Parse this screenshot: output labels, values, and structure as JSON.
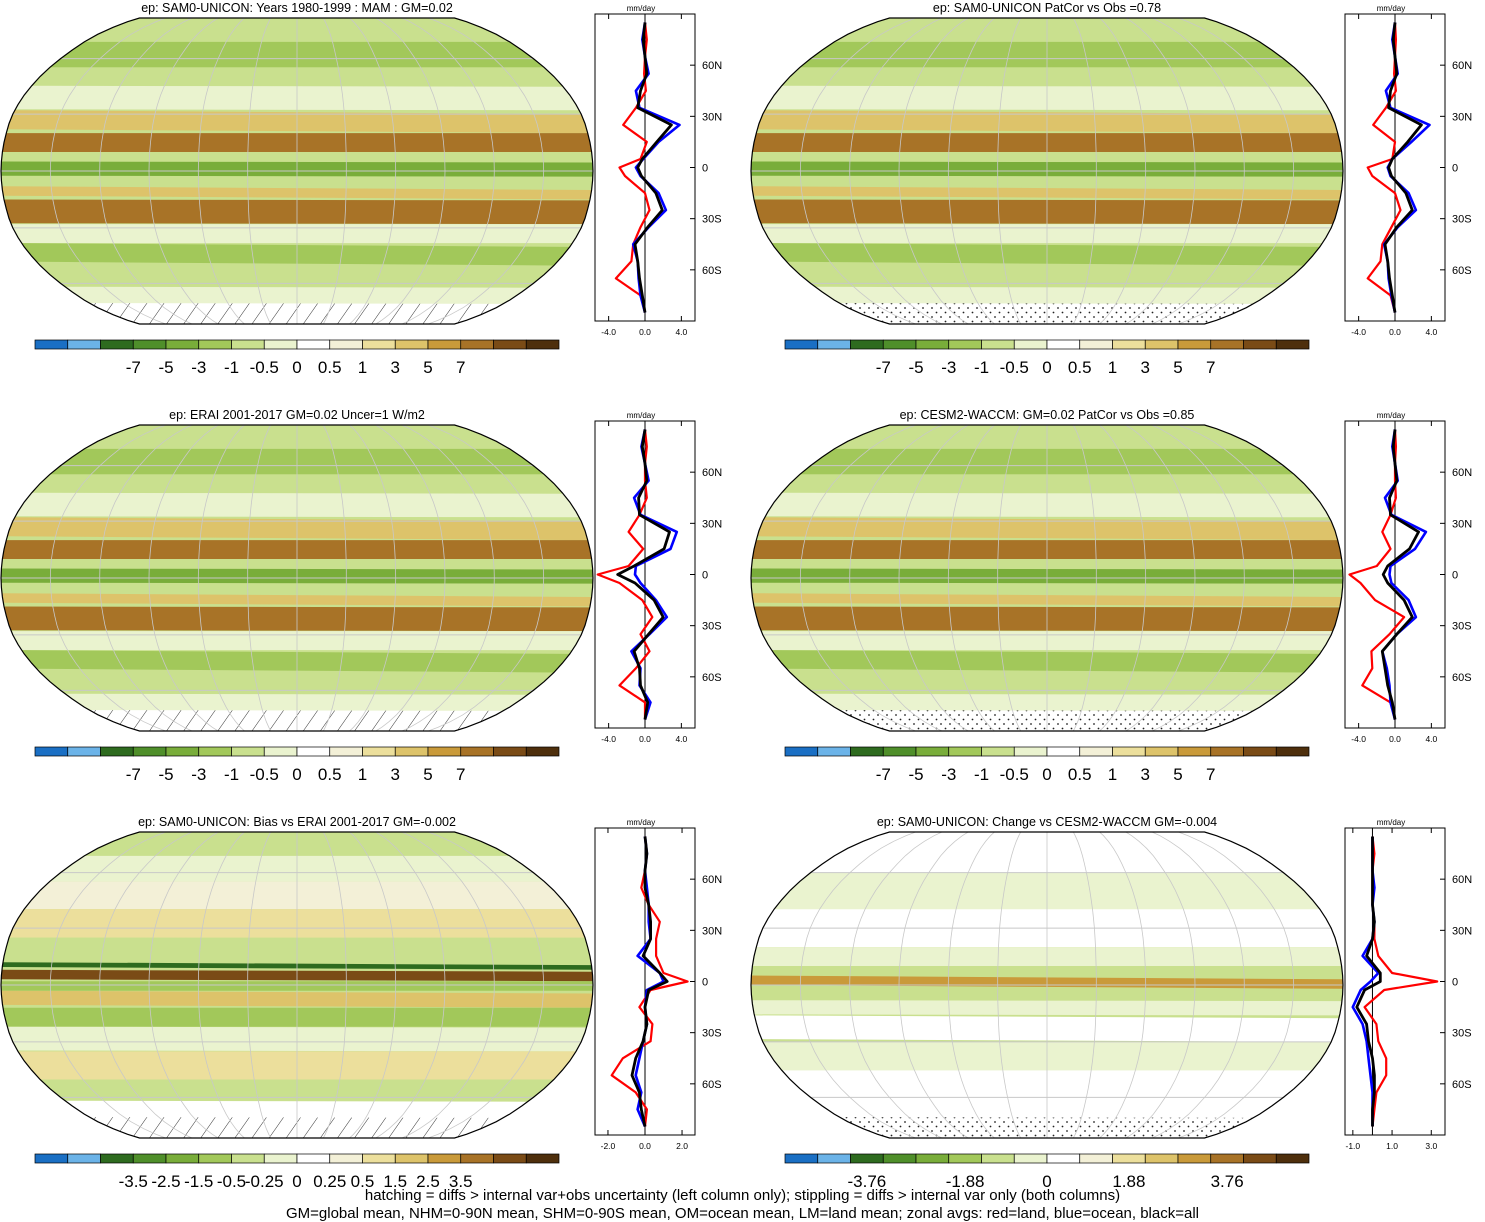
{
  "palette": {
    "colors12": [
      "#1a6fc4",
      "#6bb3e8",
      "#2e6b1f",
      "#4f8f2a",
      "#79ad3a",
      "#a2c85a",
      "#c9e08e",
      "#eaf3cf",
      "#ffffff",
      "#f3f0d7",
      "#ecdf9c",
      "#ddc36a",
      "#c99a3a",
      "#a87327",
      "#7a4b16",
      "#4e2f0c"
    ],
    "latitude_line_color": "#c8c8c8",
    "land_color": "#ff0000",
    "ocean_color": "#0000ff",
    "all_color": "#000000"
  },
  "panels": [
    {
      "id": "p1",
      "title": "ep: SAM0-UNICON: Years 1980-1999 : MAM : GM=0.02",
      "colorbar_labels": [
        "-7",
        "-5",
        "-3",
        "-1",
        "-0.5",
        "0",
        "0.5",
        "1",
        "3",
        "5",
        "7"
      ],
      "zonal_unit": "mm/day",
      "zonal_xticks": [
        "-4.0",
        "0.0",
        "4.0"
      ],
      "zonal_lat_ticks": [
        "60N",
        "30N",
        "0",
        "30S",
        "60S"
      ],
      "hatch_south": "hatching"
    },
    {
      "id": "p2",
      "title": "ep: SAM0-UNICON PatCor vs Obs =0.78",
      "colorbar_labels": [
        "-7",
        "-5",
        "-3",
        "-1",
        "-0.5",
        "0",
        "0.5",
        "1",
        "3",
        "5",
        "7"
      ],
      "zonal_unit": "mm/day",
      "zonal_xticks": [
        "-4.0",
        "0.0",
        "4.0"
      ],
      "zonal_lat_ticks": [
        "60N",
        "30N",
        "0",
        "30S",
        "60S"
      ],
      "hatch_south": "stippling"
    },
    {
      "id": "p3",
      "title": "ep: ERAI 2001-2017 GM=0.02 Uncer=1 W/m2",
      "colorbar_labels": [
        "-7",
        "-5",
        "-3",
        "-1",
        "-0.5",
        "0",
        "0.5",
        "1",
        "3",
        "5",
        "7"
      ],
      "zonal_unit": "mm/day",
      "zonal_xticks": [
        "-4.0",
        "0.0",
        "4.0"
      ],
      "zonal_lat_ticks": [
        "60N",
        "30N",
        "0",
        "30S",
        "60S"
      ],
      "hatch_south": "hatching"
    },
    {
      "id": "p4",
      "title": "ep: CESM2-WACCM: GM=0.02 PatCor vs Obs =0.85",
      "colorbar_labels": [
        "-7",
        "-5",
        "-3",
        "-1",
        "-0.5",
        "0",
        "0.5",
        "1",
        "3",
        "5",
        "7"
      ],
      "zonal_unit": "mm/day",
      "zonal_xticks": [
        "-4.0",
        "0.0",
        "4.0"
      ],
      "zonal_lat_ticks": [
        "60N",
        "30N",
        "0",
        "30S",
        "60S"
      ],
      "hatch_south": "stippling"
    },
    {
      "id": "p5",
      "title": "ep: SAM0-UNICON: Bias vs ERAI 2001-2017 GM=-0.002",
      "colorbar_labels": [
        "-3.5",
        "-2.5",
        "-1.5",
        "-0.5",
        "-0.25",
        "0",
        "0.25",
        "0.5",
        "1.5",
        "2.5",
        "3.5"
      ],
      "zonal_unit": "mm/day",
      "zonal_xticks": [
        "-2.0",
        "0.0",
        "2.0"
      ],
      "zonal_lat_ticks": [
        "60N",
        "30N",
        "0",
        "30S",
        "60S"
      ],
      "hatch_south": "hatching"
    },
    {
      "id": "p6",
      "title": "ep: SAM0-UNICON: Change vs CESM2-WACCM GM=-0.004",
      "colorbar_labels": [
        "-3.76",
        "-1.88",
        "0",
        "1.88",
        "3.76"
      ],
      "zonal_unit": "mm/day",
      "zonal_xticks": [
        "-1.0",
        "1.0",
        "3.0"
      ],
      "zonal_lat_ticks": [
        "60N",
        "30N",
        "0",
        "30S",
        "60S"
      ],
      "hatch_south": "stippling"
    }
  ],
  "chart_data": [
    {
      "type": "line",
      "title": "ep: SAM0-UNICON: Years 1980-1999 : MAM : GM=0.02",
      "xlabel": "mm/day",
      "xlim": [
        -5.5,
        5.5
      ],
      "ylim": [
        -90,
        90
      ],
      "lat": [
        -85,
        -75,
        -65,
        -55,
        -45,
        -35,
        -25,
        -15,
        -5,
        0,
        5,
        15,
        25,
        35,
        45,
        55,
        65,
        75,
        85
      ],
      "series": [
        {
          "name": "red=land",
          "values": [
            0,
            -0.5,
            -3.2,
            -1.5,
            -1.3,
            -0.5,
            0.5,
            0,
            -2.2,
            -2.8,
            -0.5,
            0.2,
            -2.4,
            -1.0,
            0.1,
            -0.1,
            0,
            0.2,
            0
          ]
        },
        {
          "name": "blue=ocean",
          "values": [
            0,
            -0.5,
            -0.7,
            -0.8,
            -1.3,
            0.4,
            2.3,
            1.5,
            -0.5,
            -1.0,
            -0.2,
            1.5,
            3.8,
            -0.6,
            -1.0,
            0.4,
            0,
            -0.3,
            0
          ]
        },
        {
          "name": "black=all",
          "values": [
            0,
            -0.3,
            -0.6,
            -0.8,
            -1.1,
            0.3,
            1.9,
            1.2,
            -0.4,
            -0.8,
            -0.3,
            1.3,
            2.9,
            -0.8,
            -0.5,
            0.2,
            0,
            -0.2,
            0
          ]
        }
      ]
    },
    {
      "type": "line",
      "title": "ep: SAM0-UNICON PatCor vs Obs =0.78",
      "xlabel": "mm/day",
      "xlim": [
        -5.5,
        5.5
      ],
      "ylim": [
        -90,
        90
      ],
      "lat": [
        -85,
        -75,
        -65,
        -55,
        -45,
        -35,
        -25,
        -15,
        -5,
        0,
        5,
        15,
        25,
        35,
        45,
        55,
        65,
        75,
        85
      ],
      "series": [
        {
          "name": "red=land",
          "values": [
            0,
            -0.5,
            -3.0,
            -1.6,
            -1.4,
            -0.4,
            0.6,
            0,
            -2.5,
            -3.0,
            -0.3,
            0,
            -2.4,
            -1.0,
            0.1,
            -0.1,
            0,
            0.1,
            0
          ]
        },
        {
          "name": "blue=ocean",
          "values": [
            0,
            -0.4,
            -0.7,
            -0.8,
            -1.2,
            0.3,
            2.3,
            1.5,
            -0.5,
            -0.8,
            -0.3,
            1.8,
            3.8,
            -0.5,
            -1.0,
            0.3,
            0,
            -0.3,
            0
          ]
        },
        {
          "name": "black=all",
          "values": [
            0,
            -0.3,
            -0.6,
            -0.8,
            -1.1,
            0.2,
            1.9,
            1.2,
            -0.4,
            -0.7,
            -0.3,
            1.4,
            2.9,
            -0.7,
            -0.5,
            0.2,
            0,
            -0.2,
            0
          ]
        }
      ]
    },
    {
      "type": "line",
      "title": "ep: ERAI 2001-2017 GM=0.02 Uncer=1 W/m2",
      "xlabel": "mm/day",
      "xlim": [
        -5.5,
        5.5
      ],
      "ylim": [
        -90,
        90
      ],
      "lat": [
        -85,
        -75,
        -65,
        -55,
        -45,
        -35,
        -25,
        -15,
        -5,
        0,
        5,
        15,
        25,
        35,
        45,
        55,
        65,
        75,
        85
      ],
      "series": [
        {
          "name": "red=land",
          "values": [
            0,
            0,
            -2.8,
            -1.0,
            0.5,
            -0.5,
            0.8,
            -0.3,
            -2.8,
            -5.2,
            -1.8,
            -0.2,
            -1.8,
            -0.6,
            0.2,
            0,
            0,
            0.2,
            0
          ]
        },
        {
          "name": "blue=ocean",
          "values": [
            0,
            0.6,
            -0.6,
            -0.5,
            -1.5,
            0.5,
            2.4,
            1.2,
            -0.5,
            -1.1,
            -1.0,
            2.8,
            3.5,
            -0.5,
            -1.2,
            0.4,
            0,
            -0.4,
            0
          ]
        },
        {
          "name": "black=all",
          "values": [
            0,
            0.3,
            -0.5,
            -0.6,
            -1.2,
            0.4,
            2.0,
            1.0,
            -1.1,
            -3.0,
            -1.2,
            2.1,
            2.7,
            -0.6,
            -0.7,
            0.2,
            0,
            -0.3,
            0
          ]
        }
      ]
    },
    {
      "type": "line",
      "title": "ep: CESM2-WACCM: GM=0.02 PatCor vs Obs =0.85",
      "xlabel": "mm/day",
      "xlim": [
        -5.5,
        5.5
      ],
      "ylim": [
        -90,
        90
      ],
      "lat": [
        -85,
        -75,
        -65,
        -55,
        -45,
        -35,
        -25,
        -15,
        -5,
        0,
        5,
        15,
        25,
        35,
        45,
        55,
        65,
        75,
        85
      ],
      "series": [
        {
          "name": "red=land",
          "values": [
            0,
            -0.5,
            -3.6,
            -2.5,
            -2.6,
            -0.6,
            1.0,
            -2.2,
            -3.8,
            -5.0,
            -2.0,
            -0.5,
            -1.4,
            -0.5,
            0.1,
            0,
            0,
            0.1,
            0
          ]
        },
        {
          "name": "blue=ocean",
          "values": [
            0,
            -0.5,
            -0.6,
            -0.9,
            -1.4,
            0.2,
            2.3,
            1.5,
            -0.4,
            -0.6,
            -0.5,
            2.2,
            3.4,
            -0.4,
            -1.1,
            0.3,
            0,
            -0.3,
            0
          ]
        },
        {
          "name": "black=all",
          "values": [
            0,
            -0.3,
            -0.8,
            -1.1,
            -1.4,
            0.2,
            1.9,
            1.0,
            -0.8,
            -1.3,
            -0.8,
            1.6,
            2.6,
            -0.5,
            -0.6,
            0.2,
            0,
            -0.2,
            0
          ]
        }
      ]
    },
    {
      "type": "line",
      "title": "ep: SAM0-UNICON: Bias vs ERAI 2001-2017 GM=-0.002",
      "xlabel": "mm/day",
      "xlim": [
        -2.7,
        2.7
      ],
      "ylim": [
        -90,
        90
      ],
      "lat": [
        -85,
        -75,
        -65,
        -55,
        -45,
        -35,
        -25,
        -15,
        -5,
        0,
        5,
        15,
        25,
        35,
        45,
        55,
        65,
        75,
        85
      ],
      "series": [
        {
          "name": "red=land",
          "values": [
            0,
            0.1,
            -0.5,
            -1.8,
            -1.2,
            0.3,
            0.4,
            -0.3,
            0.3,
            2.3,
            1.0,
            0.6,
            0.6,
            0.8,
            0.2,
            -0.2,
            0,
            0.1,
            0
          ]
        },
        {
          "name": "blue=ocean",
          "values": [
            0,
            -0.4,
            -0.2,
            -0.5,
            -0.3,
            -0.1,
            0.1,
            0,
            0.1,
            1.0,
            0.8,
            -0.4,
            0.3,
            0.2,
            0.2,
            0.1,
            0,
            0.1,
            0
          ]
        },
        {
          "name": "black=all",
          "values": [
            0,
            -0.2,
            -0.3,
            -0.7,
            -0.5,
            -0.1,
            0.1,
            0,
            0.2,
            1.2,
            0.8,
            -0.1,
            0.3,
            0.3,
            0.2,
            0,
            0,
            0.1,
            0
          ]
        }
      ]
    },
    {
      "type": "line",
      "title": "ep: SAM0-UNICON: Change vs CESM2-WACCM GM=-0.004",
      "xlabel": "mm/day",
      "xlim": [
        -1.4,
        3.7
      ],
      "ylim": [
        -90,
        90
      ],
      "lat": [
        -85,
        -75,
        -65,
        -55,
        -45,
        -35,
        -25,
        -15,
        -5,
        0,
        5,
        15,
        25,
        35,
        45,
        55,
        65,
        75,
        85
      ],
      "series": [
        {
          "name": "red=land",
          "values": [
            0,
            0.1,
            0.2,
            0.7,
            0.7,
            0.3,
            0.2,
            -0.4,
            0.6,
            3.3,
            1.0,
            0.3,
            0.1,
            0.1,
            0,
            0,
            0,
            0.1,
            0
          ]
        },
        {
          "name": "blue=ocean",
          "values": [
            0,
            0,
            0,
            -0.1,
            -0.2,
            -0.3,
            -0.5,
            -1.0,
            -0.6,
            -0.1,
            0.3,
            -0.5,
            0,
            0.1,
            0,
            0.1,
            0,
            0,
            0
          ]
        },
        {
          "name": "black=all",
          "values": [
            0,
            0,
            0.1,
            0.1,
            0,
            -0.2,
            -0.3,
            -0.8,
            -0.4,
            0.4,
            0.4,
            -0.3,
            0,
            0.1,
            0,
            0,
            0,
            0,
            0
          ]
        }
      ]
    }
  ],
  "footnote": {
    "line1": "hatching = diffs > internal var+obs uncertainty (left column only); stippling = diffs > internal var only (both columns)",
    "line2": "GM=global mean, NHM=0-90N mean, SHM=0-90S mean, OM=ocean mean, LM=land mean; zonal avgs: red=land, blue=ocean, black=all"
  }
}
